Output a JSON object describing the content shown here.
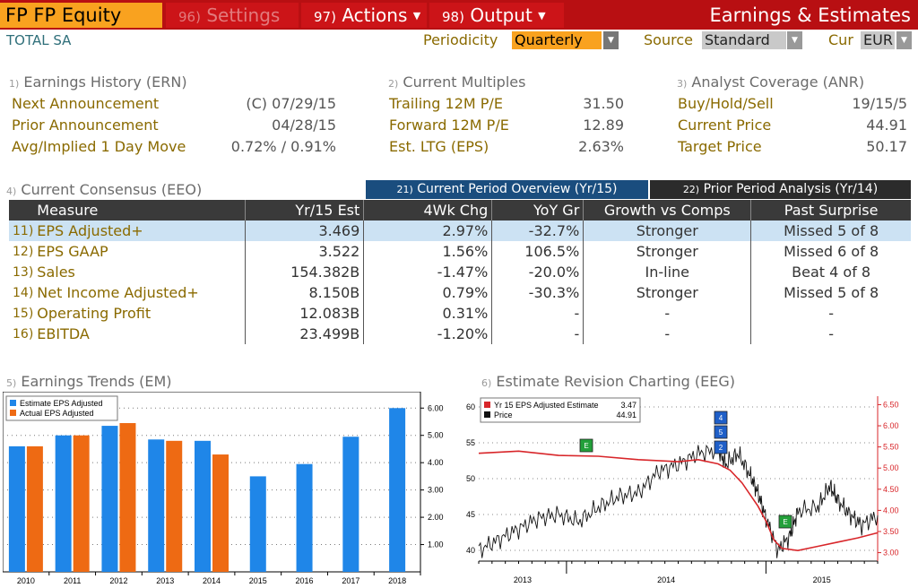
{
  "header": {
    "security": "FP FP Equity",
    "tabs": [
      {
        "num": "96)",
        "label": "Settings"
      },
      {
        "num": "97)",
        "label": "Actions"
      },
      {
        "num": "98)",
        "label": "Output"
      }
    ],
    "title": "Earnings & Estimates"
  },
  "subheader": {
    "company": "TOTAL SA",
    "periodicity_label": "Periodicity",
    "periodicity_value": "Quarterly",
    "source_label": "Source",
    "source_value": "Standard",
    "cur_label": "Cur",
    "cur_value": "EUR"
  },
  "earnings_history": {
    "num": "1)",
    "title": "Earnings History (ERN)",
    "rows": [
      {
        "label": "Next Announcement",
        "value": "(C)  07/29/15"
      },
      {
        "label": "Prior Announcement",
        "value": "04/28/15"
      },
      {
        "label": "Avg/Implied 1 Day Move",
        "value": "0.72% / 0.91%"
      }
    ]
  },
  "current_multiples": {
    "num": "2)",
    "title": "Current Multiples",
    "rows": [
      {
        "label": "Trailing 12M P/E",
        "value": "31.50"
      },
      {
        "label": "Forward 12M P/E",
        "value": "12.89"
      },
      {
        "label": "Est. LTG (EPS)",
        "value": "2.63%"
      }
    ]
  },
  "analyst_coverage": {
    "num": "3)",
    "title": "Analyst Coverage (ANR)",
    "rows": [
      {
        "label": "Buy/Hold/Sell",
        "value": "19/15/5"
      },
      {
        "label": "Current Price",
        "value": "44.91"
      },
      {
        "label": "Target Price",
        "value": "50.17"
      }
    ]
  },
  "consensus": {
    "num": "4)",
    "title": "Current Consensus (EEO)",
    "tab_overview": {
      "num": "21)",
      "label": "Current Period Overview (Yr/15)"
    },
    "tab_prior": {
      "num": "22)",
      "label": "Prior Period Analysis (Yr/14)"
    },
    "columns": [
      "Measure",
      "Yr/15 Est",
      "4Wk Chg",
      "YoY Gr",
      "Growth vs Comps",
      "Past Surprise"
    ],
    "rows": [
      {
        "num": "11)",
        "measure": "EPS Adjusted+",
        "est": "3.469",
        "chg": "2.97%",
        "chg_sign": "pos",
        "yoy": "-32.7%",
        "yoy_sign": "neg",
        "growth": "Stronger",
        "surprise": "Missed 5 of 8"
      },
      {
        "num": "12)",
        "measure": "EPS GAAP",
        "est": "3.522",
        "chg": "1.56%",
        "chg_sign": "pos",
        "yoy": "106.5%",
        "yoy_sign": "pos",
        "growth": "Stronger",
        "surprise": "Missed 6 of 8"
      },
      {
        "num": "13)",
        "measure": "Sales",
        "est": "154.382B",
        "chg": "-1.47%",
        "chg_sign": "neg",
        "yoy": "-20.0%",
        "yoy_sign": "neg",
        "growth": "In-line",
        "surprise": "Beat 4 of 8"
      },
      {
        "num": "14)",
        "measure": "Net Income Adjusted+",
        "est": "8.150B",
        "chg": "0.79%",
        "chg_sign": "pos",
        "yoy": "-30.3%",
        "yoy_sign": "neg",
        "growth": "Stronger",
        "surprise": "Missed 5 of 8"
      },
      {
        "num": "15)",
        "measure": "Operating Profit",
        "est": "12.083B",
        "chg": "0.31%",
        "chg_sign": "pos",
        "yoy": "-",
        "yoy_sign": "none",
        "growth": "-",
        "surprise": "-"
      },
      {
        "num": "16)",
        "measure": "EBITDA",
        "est": "23.499B",
        "chg": "-1.20%",
        "chg_sign": "neg",
        "yoy": "-",
        "yoy_sign": "none",
        "growth": "-",
        "surprise": "-"
      }
    ]
  },
  "trends": {
    "num": "5)",
    "title": "Earnings Trends (EM)"
  },
  "revision": {
    "num": "6)",
    "title": "Estimate Revision Charting (EEG)"
  },
  "colors": {
    "estimate_bar": "#1f86e8",
    "actual_bar": "#ee6a13",
    "estimate_line": "#d8262a",
    "price_line": "#111111",
    "right_axis": "#d8262a"
  },
  "chart_data": [
    {
      "type": "bar",
      "categories": [
        "2010",
        "2011",
        "2012",
        "2013",
        "2014",
        "2015",
        "2016",
        "2017",
        "2018"
      ],
      "series": [
        {
          "name": "Estimate EPS Adjusted",
          "values": [
            4.6,
            5.0,
            5.35,
            4.85,
            4.8,
            3.5,
            3.95,
            4.95,
            6.0
          ]
        },
        {
          "name": "Actual EPS Adjusted",
          "values": [
            4.6,
            5.0,
            5.45,
            4.8,
            4.3,
            null,
            null,
            null,
            null
          ]
        }
      ],
      "y_ticks": [
        "1.00",
        "2.00",
        "3.00",
        "4.00",
        "5.00",
        "6.00"
      ],
      "ylim": [
        0,
        6.6
      ],
      "legend": "top-left",
      "grid": true
    },
    {
      "type": "line",
      "x_ticks": [
        "2013",
        "2014",
        "2015"
      ],
      "legend_entries": [
        {
          "name": "Yr 15 EPS Adjusted Estimate",
          "value": "3.47"
        },
        {
          "name": "Price",
          "value": "44.91"
        }
      ],
      "left_ticks": [
        "40",
        "45",
        "50",
        "55",
        "60"
      ],
      "left_range": [
        38.5,
        61.5
      ],
      "right_ticks": [
        "3.00",
        "3.50",
        "4.00",
        "4.50",
        "5.00",
        "5.50",
        "6.00",
        "6.50"
      ],
      "right_range": [
        2.8,
        6.7
      ],
      "series": [
        {
          "name": "Price",
          "axis": "left",
          "x": [
            0.0,
            0.05,
            0.1,
            0.15,
            0.2,
            0.25,
            0.3,
            0.35,
            0.4,
            0.45,
            0.5,
            0.55,
            0.6,
            0.62,
            0.65,
            0.68,
            0.7,
            0.72,
            0.75,
            0.78,
            0.8,
            0.85,
            0.88,
            0.9,
            0.93,
            0.96,
            1.0
          ],
          "y": [
            40.0,
            41.5,
            43.0,
            44.5,
            45.0,
            44.0,
            46.0,
            47.5,
            48.0,
            51.0,
            52.0,
            53.5,
            54.0,
            52.0,
            53.5,
            50.5,
            48.0,
            44.5,
            40.0,
            42.0,
            45.5,
            46.0,
            49.0,
            47.0,
            45.0,
            43.5,
            44.9
          ]
        },
        {
          "name": "Yr 15 EPS Adjusted Estimate",
          "axis": "right",
          "x": [
            0.0,
            0.1,
            0.2,
            0.3,
            0.4,
            0.5,
            0.55,
            0.6,
            0.63,
            0.66,
            0.7,
            0.72,
            0.74,
            0.76,
            0.8,
            0.85,
            0.9,
            0.95,
            1.0
          ],
          "y": [
            5.35,
            5.4,
            5.3,
            5.28,
            5.2,
            5.15,
            5.2,
            5.1,
            4.95,
            4.65,
            4.1,
            3.75,
            3.3,
            3.1,
            3.05,
            3.15,
            3.25,
            3.35,
            3.47
          ]
        }
      ]
    }
  ]
}
